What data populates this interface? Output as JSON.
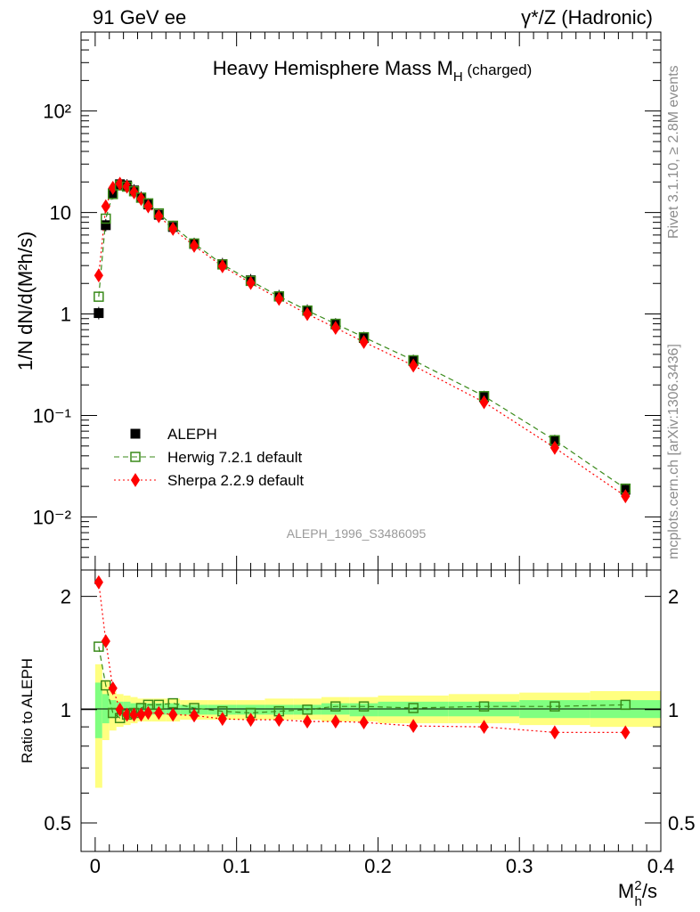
{
  "header": {
    "left": "91 GeV ee",
    "right": "γ*/Z (Hadronic)"
  },
  "side_labels": {
    "rivet": "Rivet 3.1.10, ≥ 2.8M events",
    "mcplots": "mcplots.cern.ch [arXiv:1306.3436]"
  },
  "colors": {
    "aleph": "#000000",
    "herwig": "#3a8a1a",
    "sherpa": "#ff0000",
    "band_outer": "#ffff80",
    "band_inner": "#80ff80",
    "watermark": "#999999"
  },
  "chart_data": [
    {
      "type": "scatter",
      "title": "Heavy Hemisphere Mass M",
      "title_sub": "H",
      "title_suffix": " (charged)",
      "ylabel": "1/N dN/d(M²h/s)",
      "yscale": "log",
      "ylim": [
        0.003,
        600
      ],
      "xlim": [
        -0.01,
        0.4
      ],
      "y_ticklabels": [
        "10⁻²",
        "10⁻¹",
        "1",
        "10",
        "10²"
      ],
      "watermark": "ALEPH_1996_S3486095",
      "legend_position": "lower-left",
      "x": [
        0.0025,
        0.0075,
        0.0125,
        0.0175,
        0.0225,
        0.0275,
        0.0325,
        0.0375,
        0.045,
        0.055,
        0.07,
        0.09,
        0.11,
        0.13,
        0.15,
        0.17,
        0.19,
        0.225,
        0.275,
        0.325,
        0.375
      ],
      "series": [
        {
          "name": "ALEPH",
          "marker": "square-filled",
          "values": [
            1.02,
            7.5,
            15.5,
            19.0,
            18.5,
            16.5,
            14.0,
            12.0,
            9.5,
            7.2,
            4.9,
            3.1,
            2.15,
            1.5,
            1.08,
            0.79,
            0.58,
            0.345,
            0.152,
            0.056,
            0.0185
          ]
        },
        {
          "name": "Herwig 7.2.1 default",
          "marker": "square-open",
          "line": "dashed",
          "values": [
            1.48,
            8.7,
            15.2,
            18.5,
            18.0,
            16.2,
            14.0,
            12.3,
            9.8,
            7.4,
            4.95,
            3.08,
            2.12,
            1.49,
            1.08,
            0.8,
            0.59,
            0.35,
            0.155,
            0.057,
            0.019
          ]
        },
        {
          "name": "Sherpa 2.2.9 default",
          "marker": "diamond-filled",
          "line": "dotted",
          "values": [
            2.4,
            11.5,
            17.5,
            19.2,
            18.0,
            15.8,
            13.6,
            11.5,
            9.2,
            6.9,
            4.7,
            2.95,
            2.02,
            1.41,
            1.0,
            0.73,
            0.53,
            0.31,
            0.135,
            0.048,
            0.016
          ]
        }
      ]
    },
    {
      "type": "line",
      "ylabel": "Ratio to ALEPH",
      "xlabel": "M²h/s",
      "xlim": [
        -0.01,
        0.4
      ],
      "ylim": [
        0.42,
        2.35
      ],
      "yscale": "log",
      "x_ticklabels": [
        "0",
        "0.1",
        "0.2",
        "0.3",
        "0.4"
      ],
      "y_ticklabels": [
        "0.5",
        "1",
        "2"
      ],
      "x": [
        0.0025,
        0.0075,
        0.0125,
        0.0175,
        0.0225,
        0.0275,
        0.0325,
        0.0375,
        0.045,
        0.055,
        0.07,
        0.09,
        0.11,
        0.13,
        0.15,
        0.17,
        0.19,
        0.225,
        0.275,
        0.325,
        0.375
      ],
      "bins": [
        [
          0,
          0.005
        ],
        [
          0.005,
          0.01
        ],
        [
          0.01,
          0.015
        ],
        [
          0.015,
          0.02
        ],
        [
          0.02,
          0.025
        ],
        [
          0.025,
          0.03
        ],
        [
          0.03,
          0.035
        ],
        [
          0.035,
          0.04
        ],
        [
          0.04,
          0.05
        ],
        [
          0.05,
          0.06
        ],
        [
          0.06,
          0.08
        ],
        [
          0.08,
          0.1
        ],
        [
          0.1,
          0.12
        ],
        [
          0.12,
          0.14
        ],
        [
          0.14,
          0.16
        ],
        [
          0.16,
          0.18
        ],
        [
          0.18,
          0.2
        ],
        [
          0.2,
          0.25
        ],
        [
          0.25,
          0.3
        ],
        [
          0.3,
          0.35
        ],
        [
          0.35,
          0.4
        ]
      ],
      "band_outer": [
        [
          0.62,
          1.32
        ],
        [
          0.83,
          1.2
        ],
        [
          0.88,
          1.12
        ],
        [
          0.9,
          1.1
        ],
        [
          0.91,
          1.09
        ],
        [
          0.92,
          1.08
        ],
        [
          0.93,
          1.07
        ],
        [
          0.93,
          1.07
        ],
        [
          0.93,
          1.07
        ],
        [
          0.93,
          1.07
        ],
        [
          0.94,
          1.06
        ],
        [
          0.94,
          1.06
        ],
        [
          0.94,
          1.06
        ],
        [
          0.94,
          1.07
        ],
        [
          0.94,
          1.07
        ],
        [
          0.93,
          1.08
        ],
        [
          0.93,
          1.08
        ],
        [
          0.92,
          1.09
        ],
        [
          0.92,
          1.1
        ],
        [
          0.91,
          1.11
        ],
        [
          0.9,
          1.12
        ]
      ],
      "band_inner": [
        [
          0.84,
          1.18
        ],
        [
          0.92,
          1.1
        ],
        [
          0.95,
          1.06
        ],
        [
          0.96,
          1.05
        ],
        [
          0.96,
          1.05
        ],
        [
          0.96,
          1.04
        ],
        [
          0.97,
          1.04
        ],
        [
          0.97,
          1.04
        ],
        [
          0.97,
          1.04
        ],
        [
          0.97,
          1.04
        ],
        [
          0.97,
          1.03
        ],
        [
          0.97,
          1.03
        ],
        [
          0.97,
          1.03
        ],
        [
          0.97,
          1.03
        ],
        [
          0.97,
          1.03
        ],
        [
          0.97,
          1.04
        ],
        [
          0.96,
          1.04
        ],
        [
          0.96,
          1.05
        ],
        [
          0.96,
          1.05
        ],
        [
          0.95,
          1.06
        ],
        [
          0.95,
          1.06
        ]
      ],
      "series": [
        {
          "name": "Herwig 7.2.1 default",
          "values": [
            1.47,
            1.16,
            0.98,
            0.95,
            0.97,
            0.98,
            1.01,
            1.03,
            1.03,
            1.04,
            1.01,
            0.99,
            0.98,
            0.99,
            1.0,
            1.02,
            1.02,
            1.01,
            1.02,
            1.02,
            1.03
          ]
        },
        {
          "name": "Sherpa 2.2.9 default",
          "values": [
            2.18,
            1.52,
            1.14,
            1.0,
            0.97,
            0.97,
            0.97,
            0.98,
            0.98,
            0.97,
            0.965,
            0.945,
            0.94,
            0.94,
            0.93,
            0.93,
            0.925,
            0.905,
            0.9,
            0.87,
            0.87
          ]
        }
      ]
    }
  ]
}
